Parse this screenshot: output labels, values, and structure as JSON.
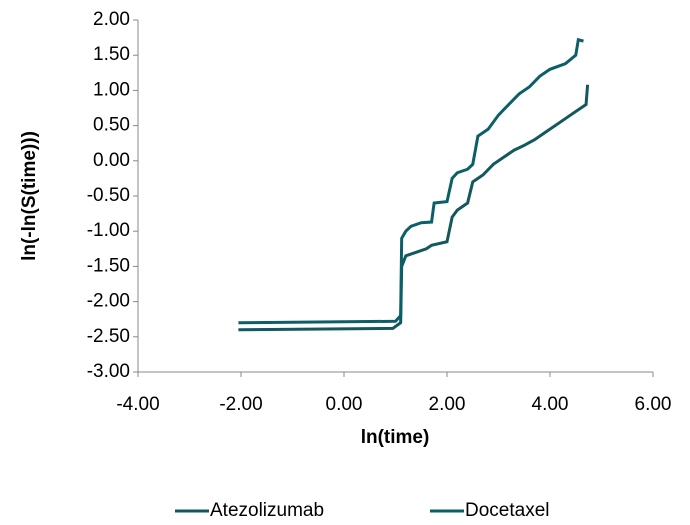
{
  "chart_data": {
    "type": "line",
    "x_label": "ln(time)",
    "y_label": "ln(-ln(S(time)))",
    "xlim": [
      -4,
      6
    ],
    "xticks": [
      {
        "value": -4,
        "label": "-4.00"
      },
      {
        "value": -2,
        "label": "-2.00"
      },
      {
        "value": 0,
        "label": "0.00"
      },
      {
        "value": 2,
        "label": "2.00"
      },
      {
        "value": 4,
        "label": "4.00"
      },
      {
        "value": 6,
        "label": "6.00"
      }
    ],
    "ylim": [
      -3,
      2
    ],
    "yticks": [
      {
        "value": 2,
        "label": "2.00"
      },
      {
        "value": 1.5,
        "label": "1.50"
      },
      {
        "value": 1,
        "label": "1.00"
      },
      {
        "value": 0.5,
        "label": "0.50"
      },
      {
        "value": 0,
        "label": "0.00"
      },
      {
        "value": -0.5,
        "label": "-0.50"
      },
      {
        "value": -1,
        "label": "-1.00"
      },
      {
        "value": -1.5,
        "label": "-1.50"
      },
      {
        "value": -2,
        "label": "-2.00"
      },
      {
        "value": -2.5,
        "label": "-2.50"
      },
      {
        "value": -3,
        "label": "-3.00"
      }
    ],
    "grid": false,
    "legend": "bottom",
    "series": [
      {
        "name": "Atezolizumab",
        "color": "#12585c",
        "x": [
          -2.05,
          0.95,
          1.1,
          1.12,
          1.2,
          1.4,
          1.6,
          1.7,
          2.0,
          2.1,
          2.2,
          2.4,
          2.5,
          2.7,
          2.9,
          3.1,
          3.3,
          3.5,
          3.7,
          3.9,
          4.1,
          4.3,
          4.5,
          4.7,
          4.73
        ],
        "values": [
          -2.4,
          -2.38,
          -2.3,
          -1.5,
          -1.35,
          -1.3,
          -1.25,
          -1.2,
          -1.15,
          -0.8,
          -0.7,
          -0.6,
          -0.3,
          -0.2,
          -0.05,
          0.05,
          0.15,
          0.22,
          0.3,
          0.4,
          0.5,
          0.6,
          0.7,
          0.8,
          1.08
        ]
      },
      {
        "name": "Docetaxel",
        "color": "#0c5f66",
        "x": [
          -2.05,
          1.0,
          1.1,
          1.12,
          1.2,
          1.3,
          1.5,
          1.7,
          1.75,
          2.0,
          2.1,
          2.2,
          2.4,
          2.5,
          2.6,
          2.8,
          3.0,
          3.2,
          3.4,
          3.6,
          3.8,
          4.0,
          4.3,
          4.5,
          4.55,
          4.65
        ],
        "values": [
          -2.3,
          -2.28,
          -2.2,
          -1.1,
          -1.0,
          -0.93,
          -0.88,
          -0.87,
          -0.6,
          -0.58,
          -0.25,
          -0.17,
          -0.12,
          -0.05,
          0.35,
          0.45,
          0.65,
          0.8,
          0.95,
          1.05,
          1.2,
          1.3,
          1.38,
          1.5,
          1.72,
          1.7
        ]
      }
    ]
  }
}
